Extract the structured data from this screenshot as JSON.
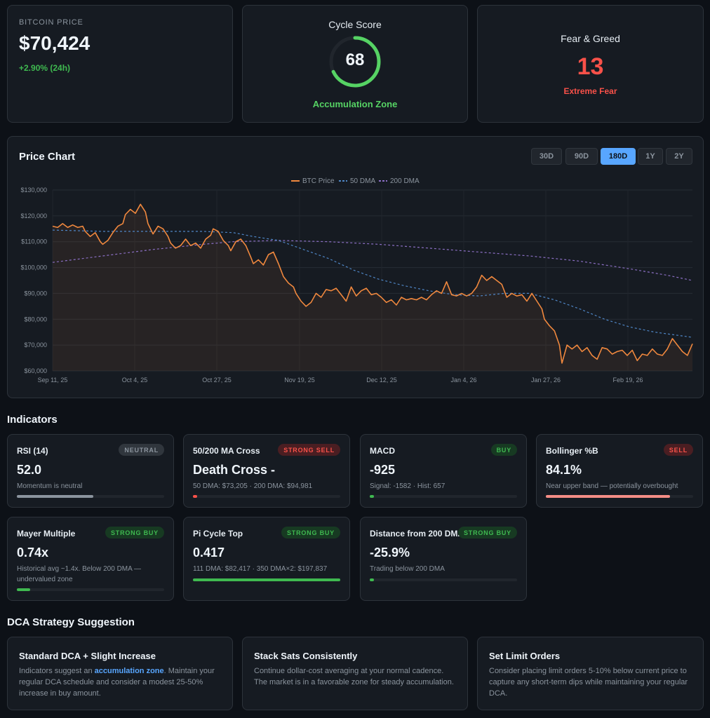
{
  "bitcoin_price": {
    "label": "BITCOIN PRICE",
    "value": "$70,424",
    "change": "+2.90% (24h)"
  },
  "cycle_score": {
    "title": "Cycle Score",
    "value": "68",
    "score": 68,
    "zone": "Accumulation Zone"
  },
  "fear_greed": {
    "title": "Fear & Greed",
    "value": "13",
    "label": "Extreme Fear"
  },
  "price_chart": {
    "title": "Price Chart",
    "ranges": [
      "30D",
      "90D",
      "180D",
      "1Y",
      "2Y"
    ],
    "active_range": "180D"
  },
  "chart_data": {
    "type": "line",
    "legend": [
      "BTC Price",
      "50 DMA",
      "200 DMA"
    ],
    "y_ticks": [
      "$130,000",
      "$120,000",
      "$110,000",
      "$100,000",
      "$90,000",
      "$80,000",
      "$70,000",
      "$60,000"
    ],
    "x_ticks": [
      "Sep 11, 25",
      "Oct 4, 25",
      "Oct 27, 25",
      "Nov 19, 25",
      "Dec 12, 25",
      "Jan 4, 26",
      "Jan 27, 26",
      "Feb 19, 26"
    ],
    "ylim": [
      60000,
      130000
    ],
    "x_days": [
      0,
      178
    ],
    "colors": {
      "btc": "#f0883e",
      "dma50": "#4f86c6",
      "dma200": "#8b6fc4"
    },
    "series": [
      {
        "name": "BTC Price",
        "points": [
          [
            0,
            116000
          ],
          [
            2,
            115500
          ],
          [
            4,
            117000
          ],
          [
            6,
            115500
          ],
          [
            8,
            116500
          ],
          [
            10,
            115500
          ],
          [
            12,
            116000
          ],
          [
            13,
            114000
          ],
          [
            15,
            112000
          ],
          [
            17,
            113500
          ],
          [
            19,
            110000
          ],
          [
            20,
            109000
          ],
          [
            22,
            110500
          ],
          [
            24,
            113500
          ],
          [
            26,
            116000
          ],
          [
            28,
            117000
          ],
          [
            29,
            120500
          ],
          [
            31,
            122500
          ],
          [
            33,
            121000
          ],
          [
            35,
            124500
          ],
          [
            37,
            121500
          ],
          [
            38,
            117000
          ],
          [
            40,
            113000
          ],
          [
            42,
            116000
          ],
          [
            44,
            115000
          ],
          [
            46,
            112000
          ],
          [
            47,
            109500
          ],
          [
            49,
            107500
          ],
          [
            51,
            108500
          ],
          [
            53,
            111000
          ],
          [
            55,
            108500
          ],
          [
            57,
            109500
          ],
          [
            59,
            107500
          ],
          [
            61,
            111000
          ],
          [
            63,
            112500
          ],
          [
            64,
            115000
          ],
          [
            66,
            114000
          ],
          [
            68,
            110500
          ],
          [
            70,
            108500
          ],
          [
            71,
            106500
          ],
          [
            73,
            110000
          ],
          [
            75,
            111000
          ],
          [
            77,
            108500
          ],
          [
            79,
            104000
          ],
          [
            80,
            101500
          ],
          [
            82,
            103000
          ],
          [
            84,
            101000
          ],
          [
            86,
            105000
          ],
          [
            88,
            106000
          ],
          [
            90,
            101500
          ],
          [
            92,
            96500
          ],
          [
            94,
            94000
          ],
          [
            96,
            92500
          ],
          [
            97,
            90000
          ],
          [
            99,
            87000
          ],
          [
            101,
            85000
          ],
          [
            103,
            86500
          ],
          [
            105,
            90000
          ],
          [
            107,
            88500
          ],
          [
            109,
            91500
          ],
          [
            111,
            91000
          ],
          [
            113,
            92000
          ],
          [
            115,
            89500
          ],
          [
            117,
            87000
          ],
          [
            119,
            92500
          ],
          [
            121,
            89000
          ],
          [
            123,
            91000
          ],
          [
            125,
            92000
          ],
          [
            127,
            89500
          ],
          [
            129,
            90000
          ],
          [
            131,
            88500
          ],
          [
            133,
            86500
          ],
          [
            135,
            87500
          ],
          [
            137,
            85500
          ],
          [
            139,
            88500
          ],
          [
            141,
            87500
          ],
          [
            143,
            88000
          ],
          [
            145,
            87500
          ],
          [
            147,
            88500
          ],
          [
            149,
            87500
          ],
          [
            151,
            89500
          ],
          [
            153,
            91000
          ],
          [
            155,
            90000
          ],
          [
            157,
            94500
          ],
          [
            159,
            89500
          ],
          [
            161,
            89000
          ],
          [
            163,
            90000
          ],
          [
            165,
            89000
          ],
          [
            167,
            90000
          ],
          [
            169,
            92500
          ],
          [
            171,
            97000
          ],
          [
            173,
            95000
          ],
          [
            175,
            96500
          ],
          [
            177,
            95000
          ],
          [
            179,
            93500
          ],
          [
            181,
            88500
          ],
          [
            183,
            90000
          ],
          [
            185,
            89000
          ],
          [
            187,
            89500
          ],
          [
            189,
            87000
          ],
          [
            191,
            90000
          ],
          [
            193,
            87000
          ],
          [
            195,
            84000
          ],
          [
            196,
            80000
          ],
          [
            198,
            77500
          ],
          [
            200,
            75500
          ],
          [
            202,
            70000
          ],
          [
            203,
            63000
          ],
          [
            205,
            70000
          ],
          [
            207,
            68500
          ],
          [
            209,
            70000
          ],
          [
            211,
            67500
          ],
          [
            213,
            69000
          ],
          [
            215,
            66000
          ],
          [
            217,
            64500
          ],
          [
            219,
            69000
          ],
          [
            221,
            68500
          ],
          [
            223,
            66500
          ],
          [
            225,
            67500
          ],
          [
            227,
            68000
          ],
          [
            229,
            66000
          ],
          [
            231,
            68000
          ],
          [
            233,
            64000
          ],
          [
            235,
            66500
          ],
          [
            237,
            66000
          ],
          [
            239,
            68500
          ],
          [
            241,
            66500
          ],
          [
            243,
            66000
          ],
          [
            245,
            68500
          ],
          [
            247,
            72500
          ],
          [
            249,
            70000
          ],
          [
            251,
            67500
          ],
          [
            253,
            66000
          ],
          [
            255,
            70500
          ]
        ]
      },
      {
        "name": "50 DMA",
        "points": [
          [
            0,
            114500
          ],
          [
            20,
            114000
          ],
          [
            40,
            114000
          ],
          [
            60,
            114000
          ],
          [
            72,
            113500
          ],
          [
            80,
            112000
          ],
          [
            90,
            110500
          ],
          [
            100,
            107000
          ],
          [
            110,
            103500
          ],
          [
            120,
            99000
          ],
          [
            130,
            95500
          ],
          [
            140,
            93000
          ],
          [
            150,
            91000
          ],
          [
            160,
            89500
          ],
          [
            170,
            89000
          ],
          [
            180,
            90000
          ],
          [
            190,
            90000
          ],
          [
            200,
            87500
          ],
          [
            210,
            84000
          ],
          [
            220,
            80000
          ],
          [
            230,
            77000
          ],
          [
            240,
            75000
          ],
          [
            255,
            73000
          ]
        ]
      },
      {
        "name": "200 DMA",
        "points": [
          [
            0,
            102000
          ],
          [
            20,
            104500
          ],
          [
            40,
            107000
          ],
          [
            60,
            109000
          ],
          [
            72,
            110000
          ],
          [
            90,
            110500
          ],
          [
            110,
            110000
          ],
          [
            130,
            109000
          ],
          [
            150,
            107500
          ],
          [
            170,
            106000
          ],
          [
            190,
            104500
          ],
          [
            210,
            102500
          ],
          [
            230,
            99500
          ],
          [
            245,
            97000
          ],
          [
            255,
            95000
          ]
        ]
      }
    ]
  },
  "indicators_title": "Indicators",
  "indicators": [
    {
      "name": "RSI (14)",
      "badge": "NEUTRAL",
      "badge_type": "neutral",
      "value": "52.0",
      "desc": "Momentum is neutral",
      "level": 0.52,
      "bar_color": "#8b949e"
    },
    {
      "name": "50/200 MA Cross",
      "badge": "STRONG SELL",
      "badge_type": "sell",
      "value": "Death Cross -",
      "desc": "50 DMA: $73,205 · 200 DMA: $94,981",
      "level": 0.03,
      "bar_color": "#f85149"
    },
    {
      "name": "MACD",
      "badge": "BUY",
      "badge_type": "buy",
      "value": "-925",
      "desc": "Signal: -1582 · Hist: 657",
      "level": 0.03,
      "bar_color": "#3fb950"
    },
    {
      "name": "Bollinger %B",
      "badge": "SELL",
      "badge_type": "sell",
      "value": "84.1%",
      "desc": "Near upper band — potentially overbought",
      "level": 0.841,
      "bar_color": "#f48d86"
    },
    {
      "name": "Mayer Multiple",
      "badge": "STRONG BUY",
      "badge_type": "buy",
      "value": "0.74x",
      "desc": "Historical avg ~1.4x. Below 200 DMA — undervalued zone",
      "level": 0.09,
      "bar_color": "#3fb950"
    },
    {
      "name": "Pi Cycle Top",
      "badge": "STRONG BUY",
      "badge_type": "buy",
      "value": "0.417",
      "desc": "111 DMA: $82,417 · 350 DMA×2: $197,837",
      "level": 1.0,
      "bar_color": "#3fb950"
    },
    {
      "name": "Distance from 200 DMA",
      "badge": "STRONG BUY",
      "badge_type": "buy",
      "value": "-25.9%",
      "desc": "Trading below 200 DMA",
      "level": 0.03,
      "bar_color": "#3fb950"
    }
  ],
  "dca_title": "DCA Strategy Suggestion",
  "dca": [
    {
      "title": "Standard DCA + Slight Increase",
      "text_before": "Indicators suggest an ",
      "highlight": "accumulation zone",
      "text_after": ". Maintain your regular DCA schedule and consider a modest 25-50% increase in buy amount."
    },
    {
      "title": "Stack Sats Consistently",
      "text": "Continue dollar-cost averaging at your normal cadence. The market is in a favorable zone for steady accumulation."
    },
    {
      "title": "Set Limit Orders",
      "text": "Consider placing limit orders 5-10% below current price to capture any short-term dips while maintaining your regular DCA."
    }
  ]
}
